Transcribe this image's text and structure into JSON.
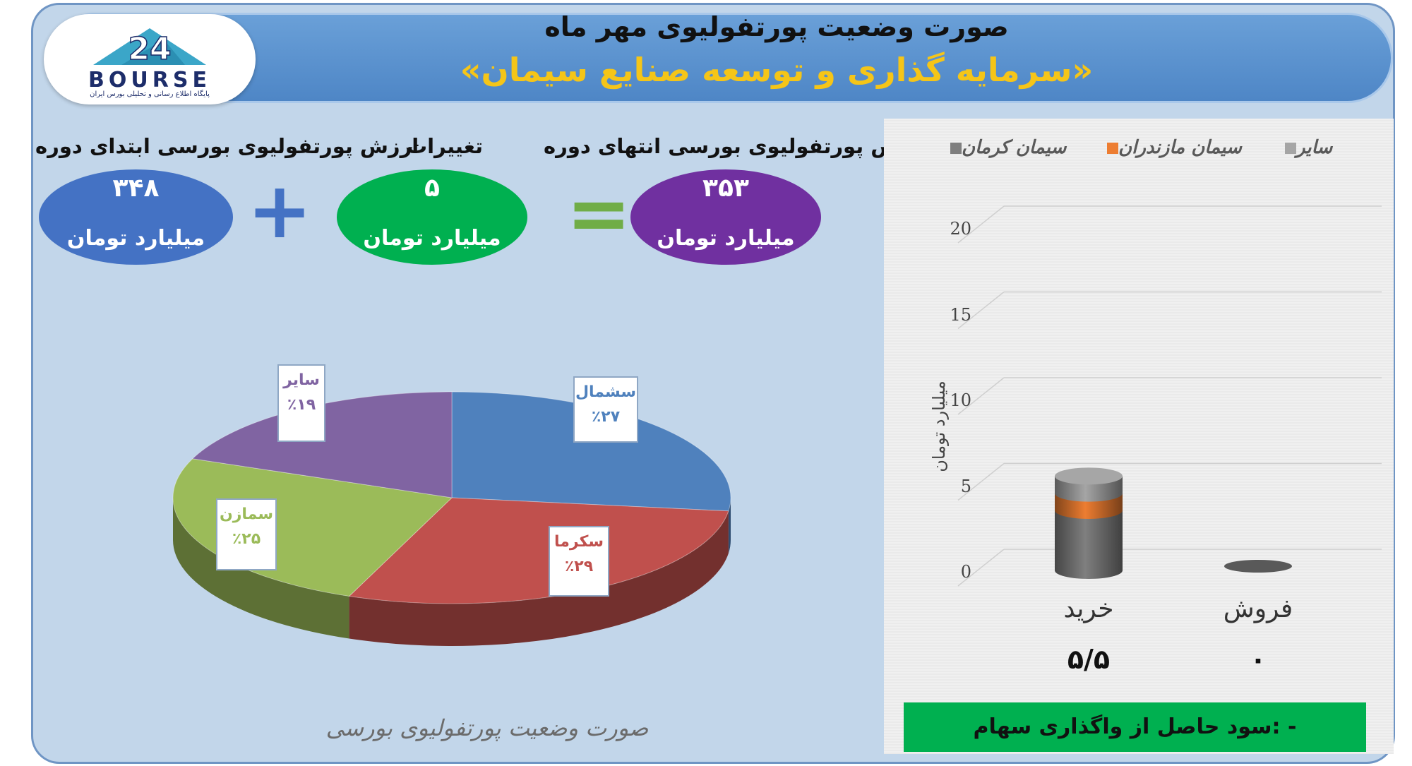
{
  "header": {
    "title": "صورت وضعیت پورتفولیوی مهر ماه",
    "subtitle": "«سرمایه گذاری و توسعه صنایع سیمان»"
  },
  "logo": {
    "text": "BOURSE",
    "subtext": "پایگاه اطلاع رسانی و تحلیلی بورس ایران"
  },
  "summary": {
    "start": {
      "label": "ارزش پورتفولیوی بورسی ابتدای دوره",
      "value": "۳۴۸",
      "unit": "میلیارد تومان",
      "color": "#4472c4"
    },
    "changes": {
      "label": "تغییرات",
      "value": "۵",
      "unit": "میلیارد تومان",
      "color": "#00b050"
    },
    "end": {
      "label": "ارزش پورتفولیوی بورسی انتهای دوره",
      "value": "۳۵۳",
      "unit": "میلیارد تومان",
      "color": "#7030a0"
    },
    "plus": "+",
    "equals": "="
  },
  "bottom_note": "سود حاصل از واگذاری سهام: -",
  "chart_data": [
    {
      "type": "pie",
      "title": "صورت وضعیت پورتفولیوی بورسی",
      "slices": [
        {
          "name": "سشمال",
          "value": 27,
          "label": "٪۲۷",
          "color": "#4f81bd"
        },
        {
          "name": "سکرما",
          "value": 29,
          "label": "٪۲۹",
          "color": "#c0504d"
        },
        {
          "name": "سمازن",
          "value": 25,
          "label": "٪۲۵",
          "color": "#9bbb59"
        },
        {
          "name": "سایر",
          "value": 19,
          "label": "٪۱۹",
          "color": "#8064a2"
        }
      ]
    },
    {
      "type": "bar",
      "categories": [
        "خرید",
        "فروش"
      ],
      "category_values": [
        "۵/۵",
        "۰"
      ],
      "ylabel": "میلیارد تومان",
      "ylim": [
        0,
        20
      ],
      "yticks": [
        "0",
        "5",
        "10",
        "15",
        "20"
      ],
      "legend_position": "top",
      "series": [
        {
          "name": "سیمان کرمان",
          "values": [
            3.5,
            0
          ],
          "color": "#7f7f7f"
        },
        {
          "name": "سیمان مازندران",
          "values": [
            1.0,
            0
          ],
          "color": "#ed7d31"
        },
        {
          "name": "سایر",
          "values": [
            1.0,
            0
          ],
          "color": "#a5a5a5"
        }
      ]
    }
  ]
}
